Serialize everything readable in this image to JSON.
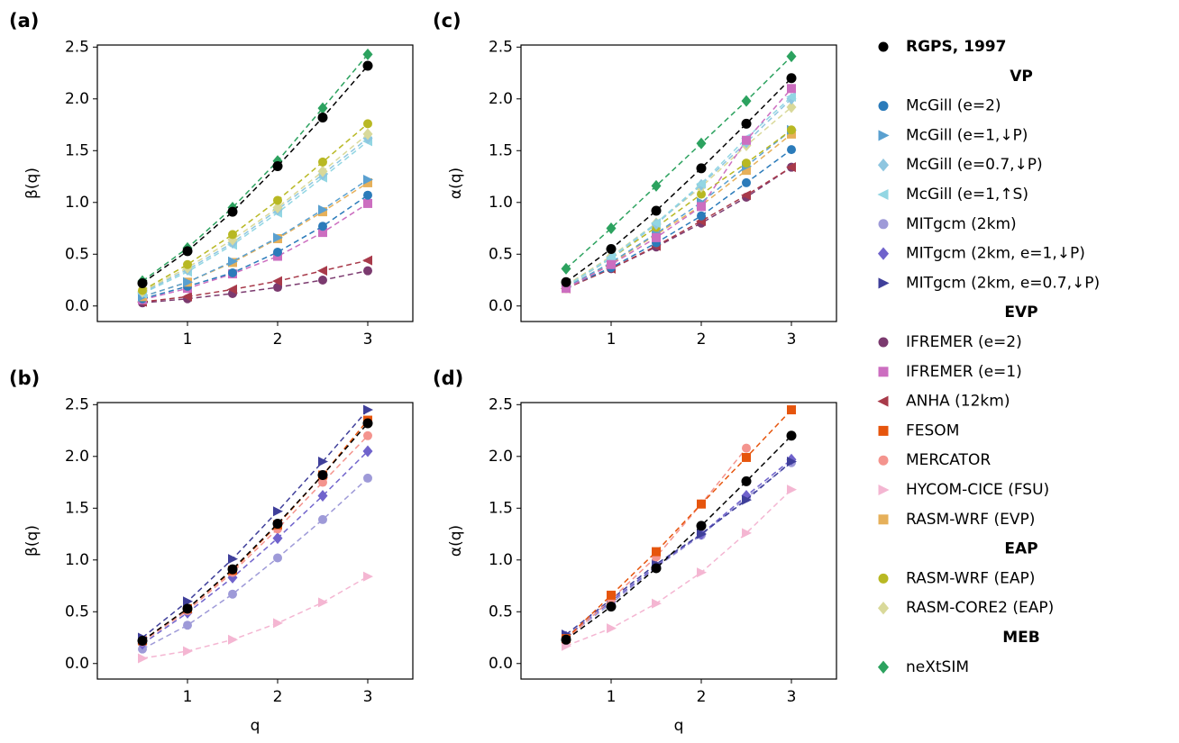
{
  "chart_data": [
    {
      "type": "line",
      "label": "(a)",
      "ylabel": "β(q)",
      "x": [
        0.5,
        1,
        1.5,
        2,
        2.5,
        3
      ],
      "xlim": [
        0,
        3.5
      ],
      "xticks": [
        1,
        2,
        3
      ],
      "ylim": [
        -0.15,
        2.52
      ],
      "yticks": [
        {
          "value": 0,
          "label": "0.0"
        },
        {
          "value": 0.5,
          "label": "0.5"
        },
        {
          "value": 1,
          "label": "1.0"
        },
        {
          "value": 1.5,
          "label": "1.5"
        },
        {
          "value": 2,
          "label": "2.0"
        },
        {
          "value": 2.5,
          "label": "2.5"
        }
      ],
      "series": [
        {
          "name": "IFREMER (e=2)",
          "values": [
            0.03,
            0.07,
            0.12,
            0.18,
            0.25,
            0.34
          ]
        },
        {
          "name": "ANHA (12km)",
          "values": [
            0.04,
            0.09,
            0.16,
            0.24,
            0.34,
            0.44
          ]
        },
        {
          "name": "IFREMER (e=1)",
          "values": [
            0.06,
            0.17,
            0.31,
            0.48,
            0.71,
            0.99
          ]
        },
        {
          "name": "McGill (e=2)",
          "values": [
            0.07,
            0.19,
            0.32,
            0.52,
            0.77,
            1.07
          ]
        },
        {
          "name": "RASM-WRF (EVP)",
          "values": [
            0.09,
            0.23,
            0.42,
            0.65,
            0.91,
            1.19
          ]
        },
        {
          "name": "McGill (e=1,↓P)",
          "values": [
            0.09,
            0.23,
            0.43,
            0.66,
            0.93,
            1.22
          ]
        },
        {
          "name": "McGill (e=1,↑S)",
          "values": [
            0.12,
            0.33,
            0.59,
            0.9,
            1.24,
            1.59
          ]
        },
        {
          "name": "McGill (e=0.7,↓P)",
          "values": [
            0.13,
            0.35,
            0.61,
            0.93,
            1.27,
            1.62
          ]
        },
        {
          "name": "RASM-CORE2 (EAP)",
          "values": [
            0.14,
            0.37,
            0.64,
            0.95,
            1.3,
            1.66
          ]
        },
        {
          "name": "RASM-WRF (EAP)",
          "values": [
            0.15,
            0.4,
            0.69,
            1.02,
            1.39,
            1.76
          ]
        },
        {
          "name": "neXtSIM",
          "values": [
            0.24,
            0.56,
            0.95,
            1.4,
            1.91,
            2.43
          ]
        },
        {
          "name": "RGPS, 1997",
          "values": [
            0.22,
            0.53,
            0.91,
            1.35,
            1.82,
            2.32
          ]
        }
      ]
    },
    {
      "type": "line",
      "label": "(b)",
      "ylabel": "β(q)",
      "xlabel": "q",
      "x": [
        0.5,
        1,
        1.5,
        2,
        2.5,
        3
      ],
      "xlim": [
        0,
        3.5
      ],
      "xticks": [
        1,
        2,
        3
      ],
      "ylim": [
        -0.15,
        2.52
      ],
      "yticks": [
        {
          "value": 0,
          "label": "0.0"
        },
        {
          "value": 0.5,
          "label": "0.5"
        },
        {
          "value": 1,
          "label": "1.0"
        },
        {
          "value": 1.5,
          "label": "1.5"
        },
        {
          "value": 2,
          "label": "2.0"
        },
        {
          "value": 2.5,
          "label": "2.5"
        }
      ],
      "series": [
        {
          "name": "HYCOM-CICE (FSU)",
          "values": [
            0.05,
            0.12,
            0.23,
            0.39,
            0.59,
            0.84
          ]
        },
        {
          "name": "MITgcm (2km)",
          "values": [
            0.14,
            0.37,
            0.67,
            1.02,
            1.39,
            1.79
          ]
        },
        {
          "name": "MITgcm (2km, e=1,↓P)",
          "values": [
            0.19,
            0.49,
            0.83,
            1.21,
            1.62,
            2.05
          ]
        },
        {
          "name": "MERCATOR",
          "values": [
            0.21,
            0.51,
            0.88,
            1.3,
            1.75,
            2.2
          ]
        },
        {
          "name": "FESOM",
          "values": [
            0.22,
            0.53,
            0.9,
            1.34,
            1.82,
            2.35
          ]
        },
        {
          "name": "MITgcm (2km, e=0.7,↓P)",
          "values": [
            0.25,
            0.6,
            1.01,
            1.47,
            1.95,
            2.45
          ]
        },
        {
          "name": "RGPS, 1997",
          "values": [
            0.22,
            0.53,
            0.91,
            1.35,
            1.82,
            2.32
          ]
        }
      ]
    },
    {
      "type": "line",
      "label": "(c)",
      "ylabel": "α(q)",
      "x": [
        0.5,
        1,
        1.5,
        2,
        2.5,
        3
      ],
      "xlim": [
        0,
        3.5
      ],
      "xticks": [
        1,
        2,
        3
      ],
      "ylim": [
        -0.15,
        2.52
      ],
      "yticks": [
        {
          "value": 0,
          "label": "0.0"
        },
        {
          "value": 0.5,
          "label": "0.5"
        },
        {
          "value": 1,
          "label": "1.0"
        },
        {
          "value": 1.5,
          "label": "1.5"
        },
        {
          "value": 2,
          "label": "2.0"
        },
        {
          "value": 2.5,
          "label": "2.5"
        }
      ],
      "series": [
        {
          "name": "IFREMER (e=2)",
          "values": [
            0.17,
            0.36,
            0.57,
            0.8,
            1.05,
            1.34
          ]
        },
        {
          "name": "ANHA (12km)",
          "values": [
            0.17,
            0.36,
            0.58,
            0.82,
            1.07,
            1.34
          ]
        },
        {
          "name": "McGill (e=2)",
          "values": [
            0.18,
            0.37,
            0.61,
            0.87,
            1.19,
            1.51
          ]
        },
        {
          "name": "RASM-WRF (EVP)",
          "values": [
            0.17,
            0.41,
            0.69,
            0.97,
            1.31,
            1.66
          ]
        },
        {
          "name": "McGill (e=1,↓P)",
          "values": [
            0.18,
            0.42,
            0.7,
            1.0,
            1.35,
            1.7
          ]
        },
        {
          "name": "RASM-WRF (EAP)",
          "values": [
            0.19,
            0.46,
            0.76,
            1.08,
            1.38,
            1.7
          ]
        },
        {
          "name": "RASM-CORE2 (EAP)",
          "values": [
            0.2,
            0.48,
            0.8,
            1.15,
            1.55,
            1.92
          ]
        },
        {
          "name": "McGill (e=0.7,↓P)",
          "values": [
            0.19,
            0.46,
            0.79,
            1.17,
            1.58,
            2.0
          ]
        },
        {
          "name": "McGill (e=1,↑S)",
          "values": [
            0.19,
            0.47,
            0.8,
            1.18,
            1.62,
            2.02
          ]
        },
        {
          "name": "IFREMER (e=1)",
          "values": [
            0.17,
            0.4,
            0.66,
            0.96,
            1.6,
            2.1
          ]
        },
        {
          "name": "neXtSIM",
          "values": [
            0.36,
            0.75,
            1.16,
            1.57,
            1.98,
            2.41
          ]
        },
        {
          "name": "RGPS, 1997",
          "values": [
            0.23,
            0.55,
            0.92,
            1.33,
            1.76,
            2.2
          ]
        }
      ]
    },
    {
      "type": "line",
      "label": "(d)",
      "ylabel": "α(q)",
      "xlabel": "q",
      "x": [
        0.5,
        1,
        1.5,
        2,
        2.5,
        3
      ],
      "xlim": [
        0,
        3.5
      ],
      "xticks": [
        1,
        2,
        3
      ],
      "ylim": [
        -0.15,
        2.52
      ],
      "yticks": [
        {
          "value": 0,
          "label": "0.0"
        },
        {
          "value": 0.5,
          "label": "0.5"
        },
        {
          "value": 1,
          "label": "1.0"
        },
        {
          "value": 1.5,
          "label": "1.5"
        },
        {
          "value": 2,
          "label": "2.0"
        },
        {
          "value": 2.5,
          "label": "2.5"
        }
      ],
      "series": [
        {
          "name": "HYCOM-CICE (FSU)",
          "values": [
            0.17,
            0.34,
            0.58,
            0.88,
            1.26,
            1.68
          ]
        },
        {
          "name": "MITgcm (2km)",
          "values": [
            0.25,
            0.58,
            0.93,
            1.24,
            1.6,
            1.94
          ]
        },
        {
          "name": "MITgcm (2km, e=1,↓P)",
          "values": [
            0.26,
            0.6,
            0.94,
            1.25,
            1.62,
            1.97
          ]
        },
        {
          "name": "MITgcm (2km, e=0.7,↓P)",
          "values": [
            0.28,
            0.62,
            0.96,
            1.25,
            1.58,
            1.95
          ]
        },
        {
          "name": "MERCATOR",
          "values": [
            0.23,
            0.62,
            1.03,
            1.54,
            2.08,
            null
          ]
        },
        {
          "name": "FESOM",
          "values": [
            0.24,
            0.66,
            1.08,
            1.54,
            1.99,
            2.45
          ]
        },
        {
          "name": "RGPS, 1997",
          "values": [
            0.23,
            0.55,
            0.92,
            1.33,
            1.76,
            2.2
          ]
        }
      ]
    }
  ],
  "legend": {
    "items": [
      {
        "name": "RGPS, 1997",
        "color": "#000000",
        "marker": "circle",
        "bold": true
      },
      {
        "heading": "VP"
      },
      {
        "name": "McGill (e=2)",
        "color": "#2b7bba",
        "marker": "circle"
      },
      {
        "name": "McGill (e=1,↓P)",
        "color": "#5aa0d0",
        "marker": "triangle-right"
      },
      {
        "name": "McGill (e=0.7,↓P)",
        "color": "#8ec6e0",
        "marker": "diamond"
      },
      {
        "name": "McGill (e=1,↑S)",
        "color": "#92d6e3",
        "marker": "triangle-left"
      },
      {
        "name": "MITgcm (2km)",
        "color": "#9e9ad8",
        "marker": "circle"
      },
      {
        "name": "MITgcm (2km, e=1,↓P)",
        "color": "#7063cc",
        "marker": "diamond"
      },
      {
        "name": "MITgcm (2km, e=0.7,↓P)",
        "color": "#3f3f9a",
        "marker": "triangle-right"
      },
      {
        "heading": "EVP"
      },
      {
        "name": "IFREMER (e=2)",
        "color": "#7b3a6f",
        "marker": "circle"
      },
      {
        "name": "IFREMER (e=1)",
        "color": "#cc6ec0",
        "marker": "square"
      },
      {
        "name": "ANHA (12km)",
        "color": "#a83a4a",
        "marker": "triangle-left"
      },
      {
        "name": "FESOM",
        "color": "#e6550d",
        "marker": "square"
      },
      {
        "name": "MERCATOR",
        "color": "#f4948e",
        "marker": "circle"
      },
      {
        "name": "HYCOM-CICE (FSU)",
        "color": "#f4b6d2",
        "marker": "triangle-right"
      },
      {
        "name": "RASM-WRF (EVP)",
        "color": "#e6b05a",
        "marker": "square"
      },
      {
        "heading": "EAP"
      },
      {
        "name": "RASM-WRF (EAP)",
        "color": "#b8b823",
        "marker": "circle"
      },
      {
        "name": "RASM-CORE2 (EAP)",
        "color": "#d9d99a",
        "marker": "diamond"
      },
      {
        "heading": "MEB"
      },
      {
        "name": "neXtSIM",
        "color": "#2ca25f",
        "marker": "diamond"
      }
    ]
  }
}
